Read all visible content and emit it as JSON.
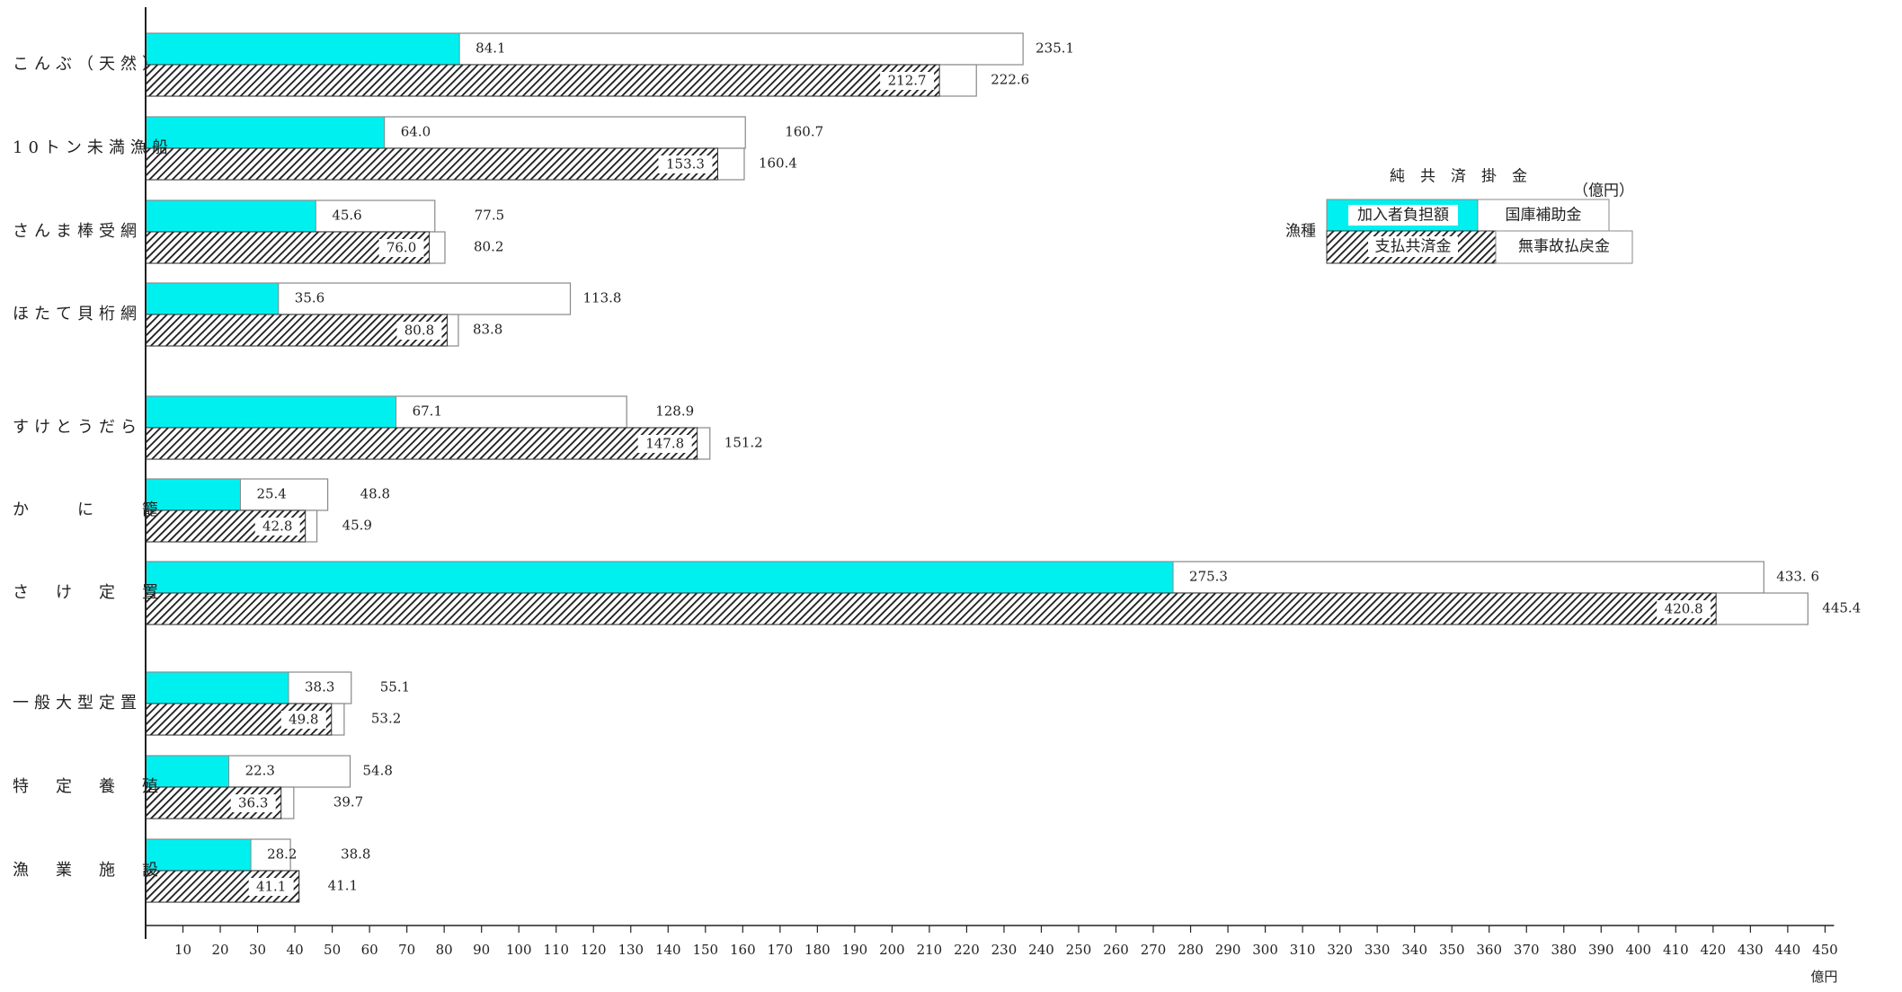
{
  "chart_data": {
    "type": "bar",
    "orientation": "horizontal",
    "xlim": [
      0,
      450
    ],
    "x_ticks": [
      10,
      20,
      30,
      40,
      50,
      60,
      70,
      80,
      90,
      100,
      110,
      120,
      130,
      140,
      150,
      160,
      170,
      180,
      190,
      200,
      210,
      220,
      230,
      240,
      250,
      260,
      270,
      280,
      290,
      300,
      310,
      320,
      330,
      340,
      350,
      360,
      370,
      380,
      390,
      400,
      410,
      420,
      430,
      440,
      450
    ],
    "x_unit": "億円",
    "legend_title": "純　共　済　掛　金",
    "legend_unit": "（億円）",
    "legend_row_label": "漁種",
    "legend_placement": "right",
    "colors": {
      "subscriber": "#00f0f0",
      "paid_hatch": "#1a1a1a",
      "total_fill": "#ffffff",
      "border": "#888888"
    },
    "series": [
      {
        "name": "加入者負担額",
        "part_of": "純共済掛金",
        "values": [
          84.1,
          64.0,
          45.6,
          35.6,
          67.1,
          25.4,
          275.3,
          38.3,
          22.3,
          28.2
        ]
      },
      {
        "name": "国庫補助金",
        "part_of": "純共済掛金"
      },
      {
        "name": "支払共済金",
        "part_of": "支払",
        "values": [
          212.7,
          153.3,
          76.0,
          80.8,
          147.8,
          42.8,
          420.8,
          49.8,
          36.3,
          41.1
        ]
      },
      {
        "name": "無事故払戻金",
        "part_of": "支払"
      }
    ],
    "premium_totals": [
      235.1,
      160.7,
      77.5,
      113.8,
      128.9,
      48.8,
      433.6,
      55.1,
      54.8,
      38.8
    ],
    "premium_total_labels": [
      "235.1",
      "160.7",
      "77.5",
      "113.8",
      "128.9",
      "48.8",
      "433. 6",
      "55.1",
      "54.8",
      "38.8"
    ],
    "payout_totals": [
      222.6,
      160.4,
      80.2,
      83.8,
      151.2,
      45.9,
      445.4,
      53.2,
      39.7,
      41.1
    ],
    "categories": [
      "こんぶ（天然）",
      "10トン未満漁船",
      "さんま棒受網",
      "ほたて貝桁網",
      "すけとうだら",
      "か　　に　　籠",
      "さ　け　定　置",
      "一般大型定置",
      "特　定　養　殖",
      "漁　業　施　設"
    ]
  }
}
